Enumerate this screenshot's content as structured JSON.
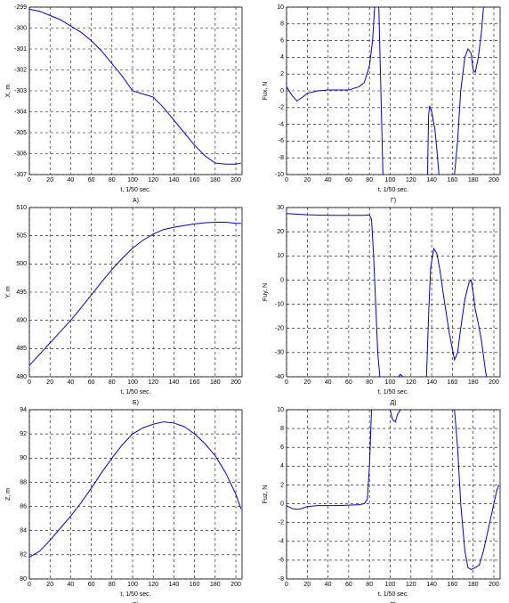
{
  "chart_data": [
    {
      "type": "line",
      "caption": "А)",
      "x_label": "t, 1/50 sec.",
      "y_label": "X, m",
      "grid": true,
      "xlim": [
        0,
        206
      ],
      "xticks": [
        0,
        20,
        40,
        60,
        80,
        100,
        120,
        140,
        160,
        180,
        200
      ],
      "ylim": [
        -307,
        -299
      ],
      "yticks": [
        -307,
        -306,
        -305,
        -304,
        -303,
        -302,
        -301,
        -300,
        -299
      ],
      "x": [
        0,
        10,
        20,
        30,
        40,
        50,
        60,
        70,
        80,
        90,
        100,
        110,
        120,
        130,
        140,
        150,
        160,
        170,
        180,
        190,
        200,
        205
      ],
      "series": [
        {
          "color": "#0000c8",
          "values": [
            -299.1,
            -299.2,
            -299.4,
            -299.6,
            -299.9,
            -300.2,
            -300.6,
            -301.1,
            -301.7,
            -302.3,
            -303.0,
            -303.15,
            -303.3,
            -303.8,
            -304.4,
            -305.0,
            -305.6,
            -306.1,
            -306.45,
            -306.5,
            -306.5,
            -306.45
          ]
        }
      ]
    },
    {
      "type": "line",
      "caption": "Б)",
      "x_label": "t, 1/50 sec.",
      "y_label": "Y, m",
      "grid": true,
      "xlim": [
        0,
        206
      ],
      "xticks": [
        0,
        20,
        40,
        60,
        80,
        100,
        120,
        140,
        160,
        180,
        200
      ],
      "ylim": [
        480,
        510
      ],
      "yticks": [
        480,
        485,
        490,
        495,
        500,
        505,
        510
      ],
      "x": [
        0,
        10,
        20,
        30,
        40,
        50,
        60,
        70,
        80,
        90,
        100,
        110,
        120,
        130,
        140,
        150,
        160,
        170,
        180,
        190,
        200,
        205
      ],
      "series": [
        {
          "color": "#0000c8",
          "values": [
            482,
            484,
            486,
            488,
            490,
            492.2,
            494.5,
            496.8,
            499,
            501,
            502.8,
            504.2,
            505.3,
            506.1,
            506.5,
            506.8,
            507.1,
            507.3,
            507.4,
            507.4,
            507.2,
            507.2
          ]
        }
      ]
    },
    {
      "type": "line",
      "caption": "В)",
      "x_label": "t, 1/50 sec.",
      "y_label": "Z, m",
      "grid": true,
      "xlim": [
        0,
        206
      ],
      "xticks": [
        0,
        20,
        40,
        60,
        80,
        100,
        120,
        140,
        160,
        180,
        200
      ],
      "ylim": [
        80,
        94
      ],
      "yticks": [
        80,
        82,
        84,
        86,
        88,
        90,
        92,
        94
      ],
      "x": [
        0,
        10,
        20,
        30,
        40,
        50,
        60,
        70,
        80,
        90,
        100,
        110,
        120,
        130,
        140,
        150,
        160,
        170,
        180,
        190,
        200,
        205
      ],
      "series": [
        {
          "color": "#0000c8",
          "values": [
            81.8,
            82.3,
            83.2,
            84.2,
            85.2,
            86.3,
            87.5,
            88.8,
            90,
            91.1,
            92,
            92.5,
            92.8,
            93,
            92.9,
            92.6,
            92,
            91.2,
            90.2,
            88.8,
            87,
            85.8
          ]
        }
      ]
    },
    {
      "type": "line",
      "caption": "Г)",
      "x_label": "t, 1/50 sec.",
      "y_label": "Fux, N",
      "grid": true,
      "xlim": [
        0,
        206
      ],
      "xticks": [
        0,
        20,
        40,
        60,
        80,
        100,
        120,
        140,
        160,
        180,
        200
      ],
      "ylim": [
        -10,
        10
      ],
      "yticks": [
        -10,
        -8,
        -6,
        -4,
        -2,
        0,
        2,
        4,
        6,
        8,
        10
      ],
      "x": [
        0,
        5,
        10,
        15,
        20,
        30,
        40,
        50,
        60,
        70,
        75,
        80,
        83,
        85,
        87,
        89,
        91,
        93,
        115,
        136,
        137,
        138,
        140,
        143,
        145,
        147,
        155,
        162,
        165,
        168,
        172,
        175,
        178,
        180,
        182,
        185,
        188,
        190
      ],
      "series": [
        {
          "color": "#0000c8",
          "values": [
            0.5,
            -0.5,
            -1.2,
            -0.8,
            -0.3,
            0,
            0.1,
            0.1,
            0.1,
            0.5,
            1,
            3,
            6,
            10,
            null,
            10,
            0,
            -10,
            null,
            -10,
            -3,
            -1.8,
            -2.5,
            -4.5,
            -7,
            -10,
            null,
            -10,
            -6,
            0,
            4,
            5,
            4.5,
            2.5,
            2.2,
            4,
            7,
            10
          ]
        }
      ]
    },
    {
      "type": "line",
      "caption": "Д)",
      "x_label": "t, 1/50 sec.",
      "y_label": "Fuy, N",
      "grid": true,
      "xlim": [
        0,
        206
      ],
      "xticks": [
        0,
        20,
        40,
        60,
        80,
        100,
        120,
        140,
        160,
        180,
        200
      ],
      "ylim": [
        -40,
        30
      ],
      "yticks": [
        -40,
        -30,
        -20,
        -10,
        0,
        10,
        20,
        30
      ],
      "x": [
        0,
        20,
        40,
        60,
        75,
        80,
        82,
        84,
        86,
        88,
        90,
        100,
        108,
        110,
        112,
        125,
        135,
        137,
        139,
        142,
        145,
        148,
        152,
        157,
        162,
        165,
        168,
        172,
        176,
        178,
        180,
        182,
        185,
        188,
        192,
        193
      ],
      "series": [
        {
          "color": "#0000c8",
          "values": [
            27.5,
            27,
            26.8,
            26.8,
            26.8,
            27,
            25,
            10,
            -10,
            -30,
            -40,
            null,
            -40,
            -39,
            -40,
            null,
            -40,
            -15,
            5,
            13,
            11,
            4,
            -8,
            -22,
            -33,
            -30,
            -20,
            -8,
            -1,
            0,
            -5,
            -12,
            -18,
            -25,
            -38,
            -40
          ]
        }
      ]
    },
    {
      "type": "line",
      "caption": "Е)",
      "x_label": "t, 1/50 sec.",
      "y_label": "Fuz, N",
      "grid": true,
      "xlim": [
        0,
        206
      ],
      "xticks": [
        0,
        20,
        40,
        60,
        80,
        100,
        120,
        140,
        160,
        180,
        200
      ],
      "ylim": [
        -8,
        10
      ],
      "yticks": [
        -8,
        -6,
        -4,
        -2,
        0,
        2,
        4,
        6,
        8,
        10
      ],
      "x": [
        0,
        5,
        10,
        15,
        20,
        30,
        50,
        70,
        75,
        78,
        80,
        82,
        90,
        100,
        102,
        105,
        107,
        110,
        140,
        162,
        165,
        168,
        172,
        175,
        178,
        182,
        186,
        190,
        195,
        200,
        203,
        205
      ],
      "series": [
        {
          "color": "#0000c8",
          "values": [
            -0.2,
            -0.5,
            -0.6,
            -0.5,
            -0.3,
            -0.2,
            -0.2,
            -0.1,
            0,
            0.5,
            4,
            10,
            null,
            10,
            9,
            8.7,
            9.5,
            10,
            null,
            10,
            6,
            0,
            -5,
            -6.8,
            -7,
            -6.8,
            -6.5,
            -5,
            -2.5,
            0,
            1.5,
            2
          ]
        }
      ]
    }
  ]
}
